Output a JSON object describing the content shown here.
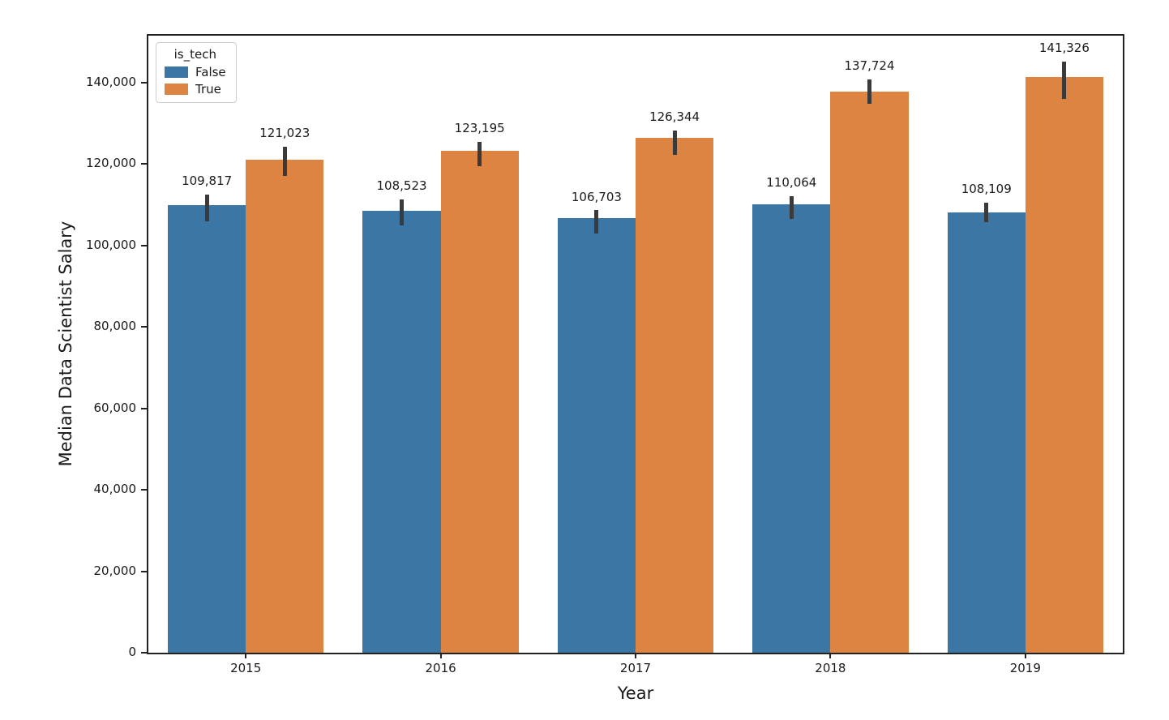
{
  "chart_data": {
    "type": "bar",
    "title": "",
    "xlabel": "Year",
    "ylabel": "Median Data Scientist Salary",
    "categories": [
      "2015",
      "2016",
      "2017",
      "2018",
      "2019"
    ],
    "series": [
      {
        "name": "False",
        "color": "#3c76a4",
        "values": [
          109817,
          108523,
          106703,
          110064,
          108109
        ],
        "labels": [
          "109,817",
          "108,523",
          "106,703",
          "110,064",
          "108,109"
        ],
        "err_low": [
          106000,
          104900,
          103000,
          106500,
          105800
        ],
        "err_high": [
          112400,
          111300,
          108600,
          112100,
          110500
        ]
      },
      {
        "name": "True",
        "color": "#dd8442",
        "values": [
          121023,
          123195,
          126344,
          137724,
          141326
        ],
        "labels": [
          "121,023",
          "123,195",
          "126,344",
          "137,724",
          "141,326"
        ],
        "err_low": [
          117000,
          119500,
          122300,
          134700,
          136000
        ],
        "err_high": [
          124300,
          125400,
          128300,
          140700,
          145100
        ]
      }
    ],
    "legend": {
      "title": "is_tech",
      "entries": [
        "False",
        "True"
      ],
      "position": "upper-left"
    },
    "ylim": [
      0,
      151500
    ],
    "yticks": [
      0,
      20000,
      40000,
      60000,
      80000,
      100000,
      120000,
      140000
    ],
    "ytick_labels": [
      "0",
      "20,000",
      "40,000",
      "60,000",
      "80,000",
      "100,000",
      "120,000",
      "140,000"
    ],
    "grid": false,
    "error_bar_color": "#3a3a3a",
    "spine_color": "#222222"
  }
}
